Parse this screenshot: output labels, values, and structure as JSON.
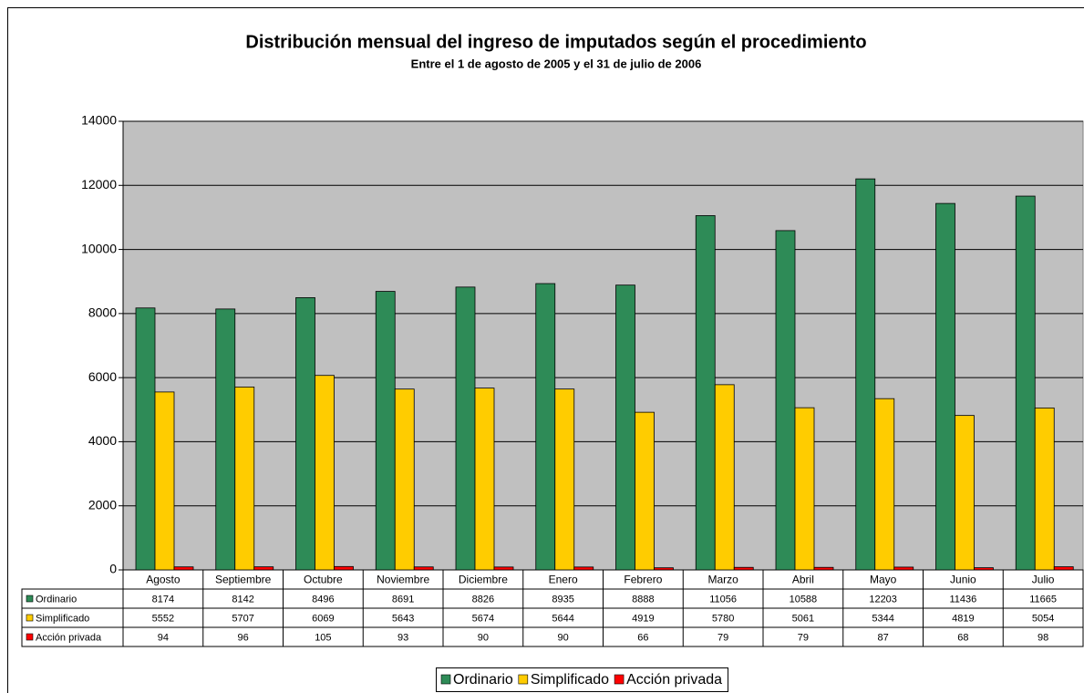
{
  "chart_data": {
    "type": "bar",
    "title": "Distribución mensual del ingreso de imputados según el procedimiento",
    "subtitle": "Entre el 1 de agosto de 2005 y el 31 de julio de 2006",
    "categories": [
      "Agosto",
      "Septiembre",
      "Octubre",
      "Noviembre",
      "Diciembre",
      "Enero",
      "Febrero",
      "Marzo",
      "Abril",
      "Mayo",
      "Junio",
      "Julio"
    ],
    "series": [
      {
        "name": "Ordinario",
        "color": "#2e8b57",
        "values": [
          8174,
          8142,
          8496,
          8691,
          8826,
          8935,
          8888,
          11056,
          10588,
          12203,
          11436,
          11665
        ]
      },
      {
        "name": "Simplificado",
        "color": "#ffcc00",
        "values": [
          5552,
          5707,
          6069,
          5643,
          5674,
          5644,
          4919,
          5780,
          5061,
          5344,
          4819,
          5054
        ]
      },
      {
        "name": "Acción privada",
        "color": "#ff0000",
        "values": [
          94,
          96,
          105,
          93,
          90,
          90,
          66,
          79,
          79,
          87,
          68,
          98
        ]
      }
    ],
    "ylim": [
      0,
      14000
    ],
    "yticks": [
      0,
      2000,
      4000,
      6000,
      8000,
      10000,
      12000,
      14000
    ],
    "grid": true,
    "legend": "bottom",
    "plot_background": "#c0c0c0"
  }
}
